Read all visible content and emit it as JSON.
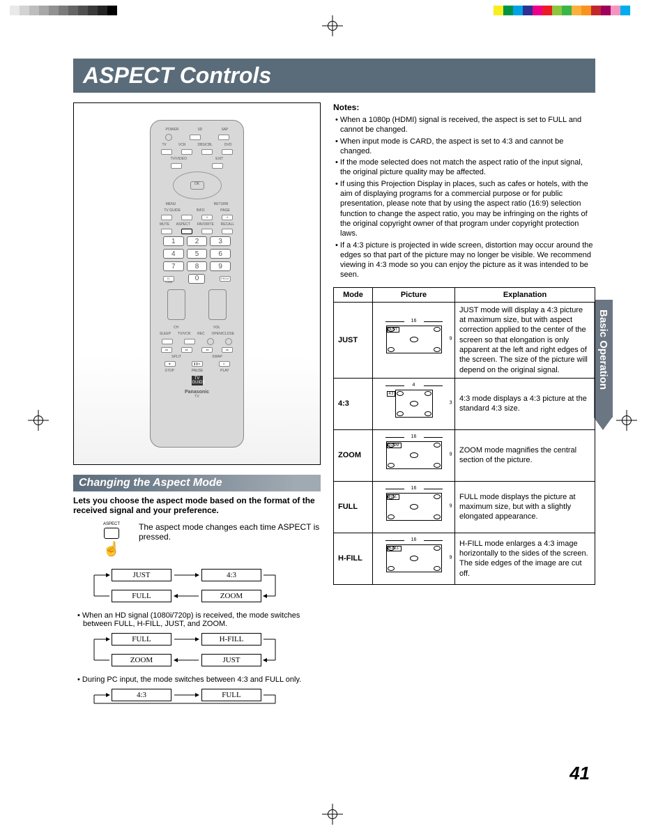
{
  "page_number": "41",
  "side_tab": "Basic Operation",
  "title": "ASPECT Controls",
  "colorbar_left": [
    "#ffffff",
    "#e9e9e9",
    "#d3d3d3",
    "#bdbdbd",
    "#a7a7a7",
    "#919191",
    "#7b7b7b",
    "#656565",
    "#4f4f4f",
    "#393939",
    "#232323",
    "#000000",
    "#ffffff",
    "#ffffff"
  ],
  "colorbar_right": [
    "#f9ed1f",
    "#009245",
    "#00a2e8",
    "#2e3192",
    "#ec008c",
    "#ed1c24",
    "#8cc63f",
    "#39b54a",
    "#fbb03b",
    "#f7931e",
    "#c1272d",
    "#9e005d",
    "#f495bf",
    "#00aeef"
  ],
  "remote": {
    "top_labels": [
      "POWER",
      "SAP"
    ],
    "device_row": [
      "TV",
      "VCR",
      "DBS/CBL",
      "DVD"
    ],
    "btns1": [
      "TV/VIDEO",
      "EXIT"
    ],
    "ok": "OK",
    "menu_row": [
      "MENU",
      "",
      "RETURN"
    ],
    "fn_row": [
      "TV GUIDE",
      "INFO",
      "PAGE"
    ],
    "fn_row2": [
      "MUTE",
      "ASPECT",
      "FAVORITE",
      "RECALL"
    ],
    "numbers": [
      "1",
      "2",
      "3",
      "4",
      "5",
      "6",
      "7",
      "8",
      "9"
    ],
    "bottom_num": [
      "R-TUNE",
      "0",
      "PROG"
    ],
    "vol": [
      "CH",
      "VOL"
    ],
    "media1": [
      "SLEEP",
      "TV/VCR",
      "REC",
      "OPEN/CLOSE"
    ],
    "media2": [
      "SPLIT",
      "SWAP"
    ],
    "media3": [
      "STOP",
      "PAUSE",
      "PLAY"
    ],
    "brand": "Panasonic",
    "brand_sub": "TV"
  },
  "subheader": "Changing the Aspect Mode",
  "intro": "Lets you choose the aspect mode based on the format of the received signal and your preference.",
  "aspect_btn_label": "ASPECT",
  "aspect_text": "The aspect mode changes each time ASPECT is pressed.",
  "cycle1": {
    "a": "JUST",
    "b": "4:3",
    "c": "FULL",
    "d": "ZOOM"
  },
  "note1": "• When an HD signal (1080i/720p) is received, the mode switches between FULL, H-FILL, JUST, and ZOOM.",
  "cycle2": {
    "a": "FULL",
    "b": "H-FILL",
    "c": "ZOOM",
    "d": "JUST"
  },
  "note2": "• During PC input, the mode switches between 4:3 and FULL only.",
  "cycle3": {
    "a": "4:3",
    "b": "FULL"
  },
  "notes_header": "Notes:",
  "notes": [
    "• When a 1080p (HDMI) signal is received, the aspect is set to FULL and cannot be changed.",
    "• When input mode is CARD, the aspect is set to 4:3 and cannot be changed.",
    "• If the mode selected does not match the aspect ratio of the input signal, the original picture quality may be affected.",
    "• If using this Projection Display in places, such as cafes or hotels, with the aim of displaying programs for a commercial purpose or for public presentation, please note that by using the aspect ratio (16:9) selection function to change the aspect ratio, you may be infringing on the rights of the original copyright owner of that program under copyright protection laws.",
    "• If a 4:3 picture is projected in wide screen, distortion may occur around the edges so that part of the picture may no longer be visible. We recommend viewing in 4:3 mode so you can enjoy the picture as it was intended to be seen."
  ],
  "table": {
    "headers": [
      "Mode",
      "Picture",
      "Explanation"
    ],
    "rows": [
      {
        "mode": "JUST",
        "w": "16",
        "h": "9",
        "tag": "JUST",
        "exp": "JUST mode will display a 4:3 picture at maximum size, but with aspect correction applied to the center of the screen so that elongation is only apparent at the left and right edges of the screen. The size of the picture will depend on the original signal."
      },
      {
        "mode": "4:3",
        "w": "4",
        "h": "3",
        "tag": "4:3",
        "exp": "4:3 mode displays a 4:3 picture at the standard 4:3 size."
      },
      {
        "mode": "ZOOM",
        "w": "16",
        "h": "9",
        "tag": "ZOOM",
        "exp": "ZOOM mode magnifies the central section of the picture."
      },
      {
        "mode": "FULL",
        "w": "16",
        "h": "9",
        "tag": "FULL",
        "exp": "FULL mode displays the picture at maximum size, but with a slightly elongated appearance."
      },
      {
        "mode": "H-FILL",
        "w": "16",
        "h": "9",
        "tag": "H-FILL",
        "exp": "H-FILL mode enlarges a 4:3 image horizontally to the sides of the screen. The side edges of the image are cut off."
      }
    ]
  }
}
